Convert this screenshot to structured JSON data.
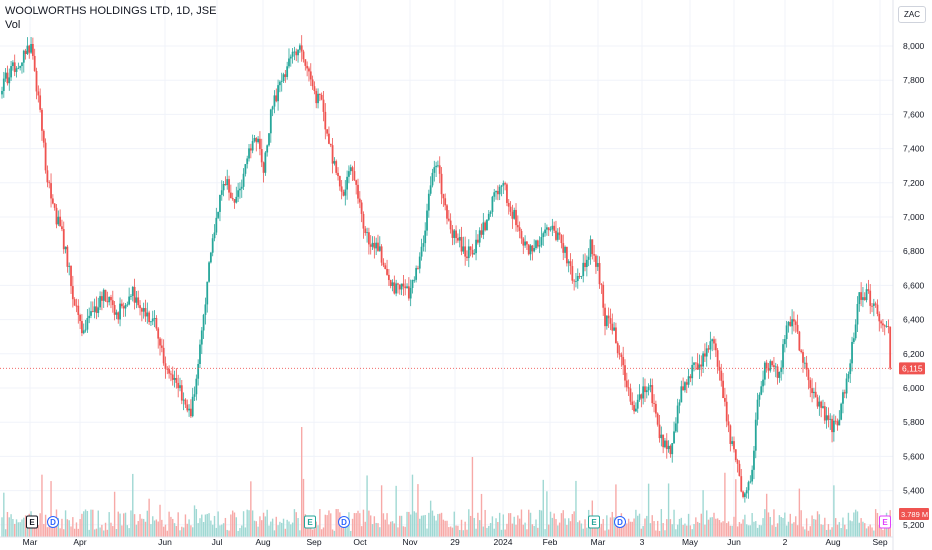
{
  "header": {
    "title": "WOOLWORTHS HOLDINGS LTD, 1D, JSE",
    "volume_label": "Vol",
    "currency": "ZAC"
  },
  "colors": {
    "up": "#26a69a",
    "down": "#ef5350",
    "up_volume": "#9fd8d3",
    "down_volume": "#f7a9a7",
    "grid": "#f0f3fa",
    "price_line": "#ef5350",
    "volume_badge": "#ef5350",
    "earnings_marker": "#131722",
    "dividend_marker": "#2962ff",
    "earnings_marker_alt": "#26a69a",
    "earnings_marker_future": "#e040fb"
  },
  "chart_data": {
    "type": "candlestick",
    "title": "WOOLWORTHS HOLDINGS LTD, 1D, JSE",
    "ylabel": "",
    "ylim": [
      5200,
      8150
    ],
    "y_ticks": [
      8000,
      7800,
      7600,
      7400,
      7200,
      7000,
      6800,
      6600,
      6400,
      6200,
      6000,
      5800,
      5600,
      5400,
      5200
    ],
    "y_tick_labels": [
      "8,000",
      "7,800",
      "7,600",
      "7,400",
      "7,200",
      "7,000",
      "6,800",
      "6,600",
      "6,400",
      "6,200",
      "6,000",
      "5,800",
      "5,600",
      "5,400",
      "5,200"
    ],
    "x_tick_labels": [
      "Mar",
      "Apr",
      "Jun",
      "Jul",
      "Aug",
      "Sep",
      "Oct",
      "Nov",
      "29",
      "2024",
      "Feb",
      "Mar",
      "3",
      "May",
      "Jun",
      "2",
      "Aug",
      "Sep"
    ],
    "last_price": 6115,
    "last_price_label": "6,115",
    "last_volume_label": "3.789 M",
    "grid": true,
    "close_path": [
      [
        0,
        7780
      ],
      [
        4,
        7820
      ],
      [
        8,
        7900
      ],
      [
        12,
        7950
      ],
      [
        16,
        8000
      ],
      [
        20,
        7700
      ],
      [
        24,
        7300
      ],
      [
        28,
        7050
      ],
      [
        32,
        6950
      ],
      [
        36,
        6750
      ],
      [
        40,
        6500
      ],
      [
        44,
        6300
      ],
      [
        48,
        6420
      ],
      [
        52,
        6480
      ],
      [
        56,
        6560
      ],
      [
        60,
        6500
      ],
      [
        64,
        6440
      ],
      [
        68,
        6510
      ],
      [
        72,
        6560
      ],
      [
        76,
        6480
      ],
      [
        80,
        6440
      ],
      [
        84,
        6380
      ],
      [
        88,
        6200
      ],
      [
        92,
        6080
      ],
      [
        96,
        6020
      ],
      [
        100,
        5950
      ],
      [
        104,
        5850
      ],
      [
        108,
        6150
      ],
      [
        112,
        6500
      ],
      [
        116,
        6900
      ],
      [
        120,
        7100
      ],
      [
        124,
        7200
      ],
      [
        128,
        7080
      ],
      [
        132,
        7200
      ],
      [
        136,
        7380
      ],
      [
        140,
        7460
      ],
      [
        144,
        7300
      ],
      [
        148,
        7600
      ],
      [
        152,
        7750
      ],
      [
        156,
        7850
      ],
      [
        160,
        7950
      ],
      [
        164,
        8000
      ],
      [
        168,
        7850
      ],
      [
        172,
        7720
      ],
      [
        176,
        7660
      ],
      [
        180,
        7450
      ],
      [
        184,
        7250
      ],
      [
        188,
        7100
      ],
      [
        192,
        7300
      ],
      [
        196,
        7100
      ],
      [
        200,
        6900
      ],
      [
        204,
        6850
      ],
      [
        208,
        6800
      ],
      [
        212,
        6650
      ],
      [
        216,
        6560
      ],
      [
        220,
        6640
      ],
      [
        224,
        6550
      ],
      [
        228,
        6700
      ],
      [
        232,
        6860
      ],
      [
        236,
        7220
      ],
      [
        240,
        7300
      ],
      [
        244,
        7050
      ],
      [
        248,
        6900
      ],
      [
        252,
        6850
      ],
      [
        256,
        6800
      ],
      [
        260,
        6820
      ],
      [
        264,
        6900
      ],
      [
        268,
        7000
      ],
      [
        272,
        7150
      ],
      [
        276,
        7200
      ],
      [
        280,
        7050
      ],
      [
        284,
        6950
      ],
      [
        288,
        6850
      ],
      [
        292,
        6800
      ],
      [
        296,
        6850
      ],
      [
        300,
        6950
      ],
      [
        304,
        6900
      ],
      [
        308,
        6850
      ],
      [
        312,
        6720
      ],
      [
        316,
        6620
      ],
      [
        320,
        6700
      ],
      [
        324,
        6850
      ],
      [
        328,
        6720
      ],
      [
        332,
        6400
      ],
      [
        336,
        6350
      ],
      [
        340,
        6200
      ],
      [
        344,
        6000
      ],
      [
        348,
        5900
      ],
      [
        352,
        5960
      ],
      [
        356,
        6050
      ],
      [
        360,
        5850
      ],
      [
        364,
        5650
      ],
      [
        368,
        5650
      ],
      [
        372,
        5900
      ],
      [
        376,
        6050
      ],
      [
        380,
        6100
      ],
      [
        384,
        6120
      ],
      [
        388,
        6220
      ],
      [
        392,
        6250
      ],
      [
        396,
        6050
      ],
      [
        400,
        5750
      ],
      [
        404,
        5550
      ],
      [
        408,
        5400
      ],
      [
        412,
        5450
      ],
      [
        416,
        5900
      ],
      [
        420,
        6150
      ],
      [
        424,
        6100
      ],
      [
        428,
        6100
      ],
      [
        432,
        6350
      ],
      [
        436,
        6380
      ],
      [
        440,
        6200
      ],
      [
        444,
        6050
      ],
      [
        448,
        5950
      ],
      [
        452,
        5850
      ],
      [
        456,
        5780
      ],
      [
        460,
        5800
      ],
      [
        464,
        6000
      ],
      [
        468,
        6250
      ],
      [
        472,
        6520
      ],
      [
        476,
        6560
      ],
      [
        480,
        6480
      ],
      [
        484,
        6400
      ],
      [
        488,
        6350
      ],
      [
        489,
        6115
      ]
    ],
    "events": [
      {
        "label": "E",
        "kind": "earnings"
      },
      {
        "label": "D",
        "kind": "dividend"
      },
      {
        "label": "E",
        "kind": "earnings"
      },
      {
        "label": "D",
        "kind": "dividend"
      },
      {
        "label": "E",
        "kind": "earnings"
      },
      {
        "label": "D",
        "kind": "dividend"
      },
      {
        "label": "E",
        "kind": "earnings_upcoming"
      }
    ]
  }
}
